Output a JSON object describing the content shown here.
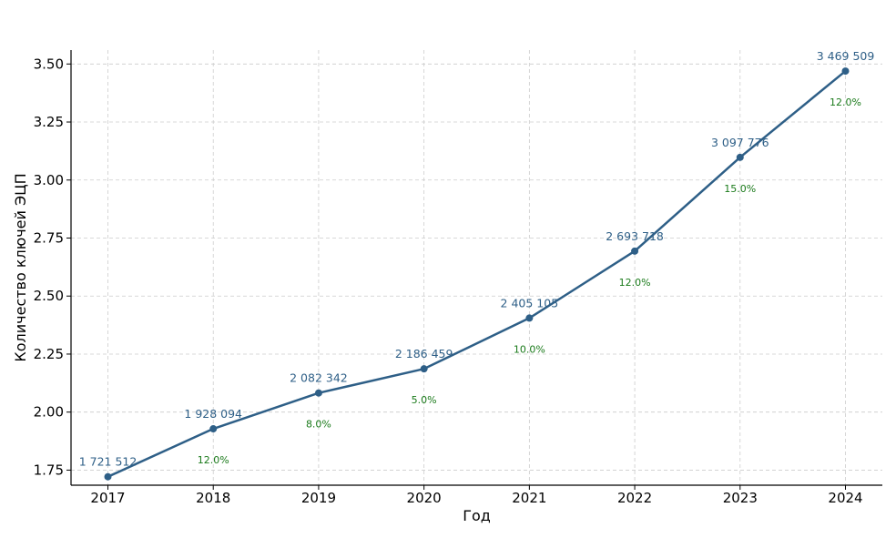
{
  "chart_data": {
    "type": "line",
    "title": "",
    "xlabel": "Год",
    "ylabel": "Количество ключей ЭЦП",
    "x": [
      2017,
      2018,
      2019,
      2020,
      2021,
      2022,
      2023,
      2024
    ],
    "series": [
      {
        "values": [
          1.721512,
          1.928094,
          2.082342,
          2.186459,
          2.405105,
          2.693718,
          3.097776,
          3.469509
        ],
        "value_labels": [
          "1 721 512",
          "1 928 094",
          "2 082 342",
          "2 186 459",
          "2 405 105",
          "2 693 718",
          "3 097 776",
          "3 469 509"
        ],
        "growth_labels": [
          "",
          "12.0%",
          "8.0%",
          "5.0%",
          "10.0%",
          "12.0%",
          "15.0%",
          "12.0%"
        ]
      }
    ],
    "xticks": [
      "2017",
      "2018",
      "2019",
      "2020",
      "2021",
      "2022",
      "2023",
      "2024"
    ],
    "yticks": [
      "1.75",
      "2.00",
      "2.25",
      "2.50",
      "2.75",
      "3.00",
      "3.25",
      "3.50"
    ],
    "ytick_values": [
      1.75,
      2.0,
      2.25,
      2.5,
      2.75,
      3.0,
      3.25,
      3.5
    ],
    "ylim": [
      1.685,
      3.56
    ],
    "xlim": [
      2016.65,
      2024.35
    ],
    "grid": true,
    "colors": {
      "line": "#2e5f87",
      "value_label": "#2e5f87",
      "growth_label": "#1a7a1a",
      "grid": "#cccccc",
      "axis": "#000000"
    }
  }
}
